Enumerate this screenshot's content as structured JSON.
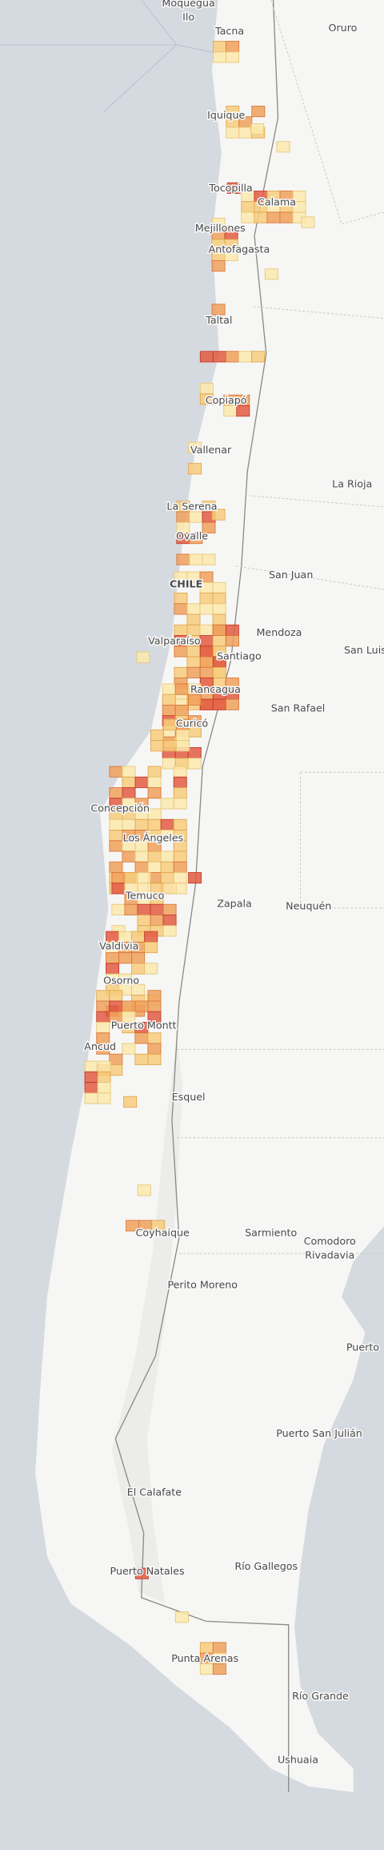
{
  "places": [
    "Moquegua",
    "Ilo",
    "Tacna",
    "Oruro",
    "Iquique",
    "Tocopilla",
    "Calama",
    "Mejillones",
    "Antofagasta",
    "Taltal",
    "Copiapó",
    "Vallenar",
    "La Rioja",
    "La Serena",
    "Ovalle",
    "San Juan",
    "CHILE",
    "Mendoza",
    "San Luis",
    "Valparaíso",
    "Santiago",
    "Rancagua",
    "San Rafael",
    "Curicó",
    "Concepción",
    "Los Ángeles",
    "Temuco",
    "Zapala",
    "Neuquén",
    "Valdivia",
    "Osorno",
    "Puerto Montt",
    "Ancud",
    "Esquel",
    "Coyhaique",
    "Sarmiento",
    "Comodoro",
    "Rivadavia",
    "Perito Moreno",
    "Puerto",
    "Puerto San Julián",
    "El Calafate",
    "Puerto Natales",
    "Río Gallegos",
    "Punta Arenas",
    "Río Grande",
    "Ushuaia"
  ]
}
